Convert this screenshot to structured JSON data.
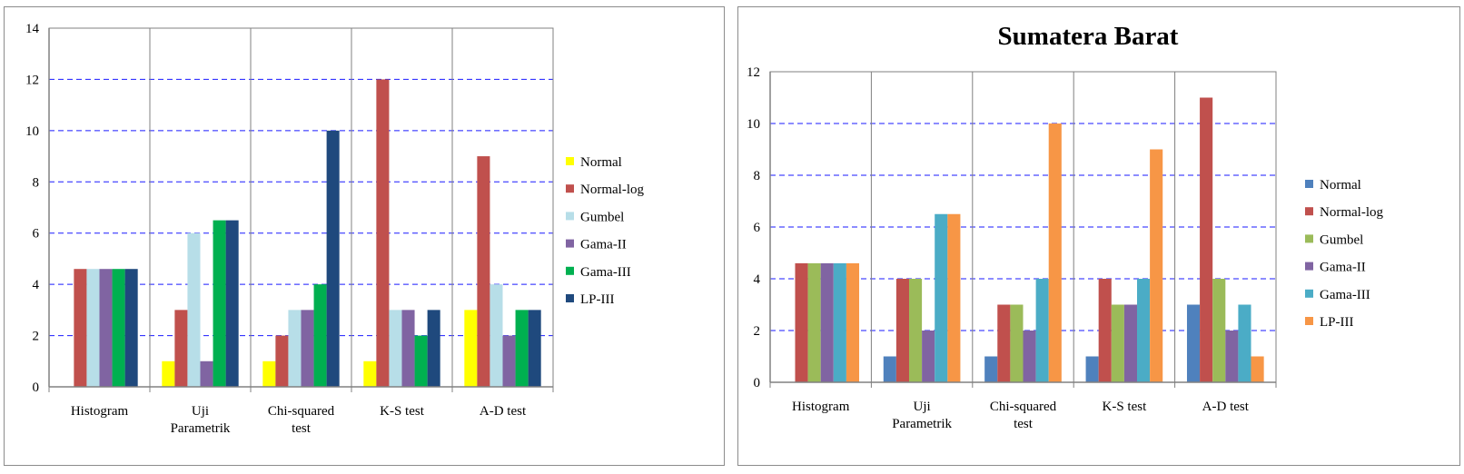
{
  "charts": [
    {
      "id": "left",
      "chart_data": {
        "type": "bar",
        "title": "",
        "xlabel": "",
        "ylabel": "",
        "ylim": [
          0,
          14
        ],
        "yticks": [
          "0",
          "2",
          "4",
          "6",
          "8",
          "10",
          "12",
          "14"
        ],
        "grid": true,
        "legend_position": "right",
        "categories": [
          [
            "Histogram"
          ],
          [
            "Uji",
            "Parametrik"
          ],
          [
            "Chi-squared",
            "test"
          ],
          [
            "K-S test"
          ],
          [
            "A-D test"
          ]
        ],
        "series": [
          {
            "name": "Normal",
            "color": "#ffff00",
            "values": [
              0,
              1,
              1,
              1,
              3
            ]
          },
          {
            "name": "Normal-log",
            "color": "#c0504d",
            "values": [
              4.6,
              3,
              2,
              12,
              9
            ]
          },
          {
            "name": "Gumbel",
            "color": "#b7dee8",
            "values": [
              4.6,
              6,
              3,
              3,
              4
            ]
          },
          {
            "name": "Gama-II",
            "color": "#8064a2",
            "values": [
              4.6,
              1,
              3,
              3,
              2
            ]
          },
          {
            "name": "Gama-III",
            "color": "#00b050",
            "values": [
              4.6,
              6.5,
              4,
              2,
              3
            ]
          },
          {
            "name": "LP-III",
            "color": "#1f497d",
            "values": [
              4.6,
              6.5,
              10,
              3,
              3
            ]
          }
        ]
      }
    },
    {
      "id": "right",
      "chart_data": {
        "type": "bar",
        "title": "Sumatera Barat",
        "xlabel": "",
        "ylabel": "",
        "ylim": [
          0,
          12
        ],
        "yticks": [
          "0",
          "2",
          "4",
          "6",
          "8",
          "10",
          "12"
        ],
        "grid": true,
        "legend_position": "right",
        "categories": [
          [
            "Histogram"
          ],
          [
            "Uji",
            "Parametrik"
          ],
          [
            "Chi-squared",
            "test"
          ],
          [
            "K-S test"
          ],
          [
            "A-D test"
          ]
        ],
        "series": [
          {
            "name": "Normal",
            "color": "#4f81bd",
            "values": [
              0,
              1,
              1,
              1,
              3
            ]
          },
          {
            "name": "Normal-log",
            "color": "#c0504d",
            "values": [
              4.6,
              4,
              3,
              4,
              11
            ]
          },
          {
            "name": "Gumbel",
            "color": "#9bbb59",
            "values": [
              4.6,
              4,
              3,
              3,
              4
            ]
          },
          {
            "name": "Gama-II",
            "color": "#8064a2",
            "values": [
              4.6,
              2,
              2,
              3,
              2
            ]
          },
          {
            "name": "Gama-III",
            "color": "#4bacc6",
            "values": [
              4.6,
              6.5,
              4,
              4,
              3
            ]
          },
          {
            "name": "LP-III",
            "color": "#f79646",
            "values": [
              4.6,
              6.5,
              10,
              9,
              1
            ]
          }
        ]
      }
    }
  ]
}
